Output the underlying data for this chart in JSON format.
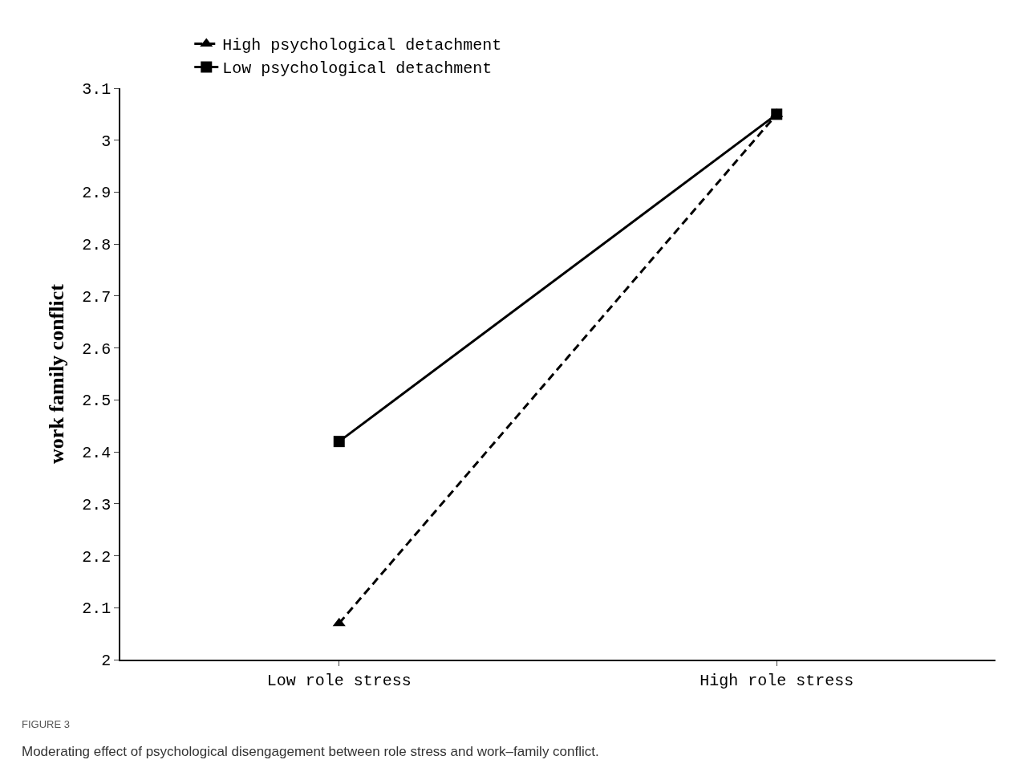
{
  "chart_data": {
    "type": "line",
    "ylabel": "work family conflict",
    "categories": [
      "Low role stress",
      "High role stress"
    ],
    "series": [
      {
        "name": "High psychological detachment",
        "color": "#000000",
        "values": [
          2.07,
          3.05
        ],
        "marker": "triangle",
        "line_style": "dashed"
      },
      {
        "name": "Low psychological detachment",
        "color": "#000000",
        "values": [
          2.42,
          3.05
        ],
        "marker": "square",
        "line_style": "solid"
      }
    ],
    "ylim": [
      2,
      3.1
    ],
    "yticks": [
      2,
      2.1,
      2.2,
      2.3,
      2.4,
      2.5,
      2.6,
      2.7,
      2.8,
      2.9,
      3,
      3.1
    ],
    "grid": false,
    "legend": "top left",
    "annotations": [
      "FIGURE 3",
      "Moderating effect of psychological disengagement between role stress and work–family conflict."
    ]
  }
}
